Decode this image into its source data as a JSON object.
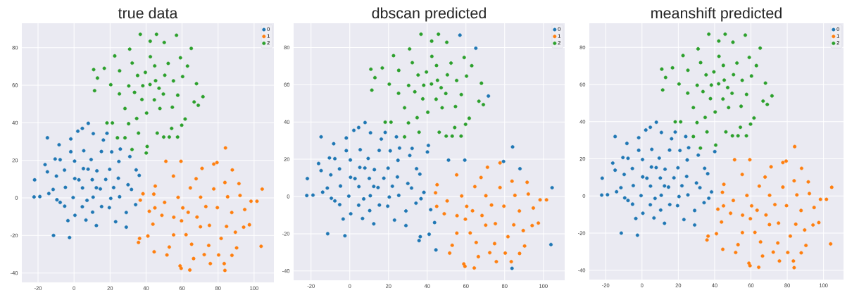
{
  "chart_data": [
    {
      "type": "scatter",
      "title": "true data",
      "xlim": [
        -29,
        111
      ],
      "ylim": [
        -45,
        93
      ],
      "xticks": [
        -20,
        0,
        20,
        40,
        60,
        80,
        100
      ],
      "yticks": [
        -40,
        -20,
        0,
        20,
        40,
        60,
        80
      ],
      "grid": true,
      "legend": "top right",
      "marker": "circle",
      "series": [
        {
          "name": "0",
          "color": "#1f77b4",
          "x": [
            -22.2,
            -19.0,
            -21.9,
            -11.4,
            -2.5,
            -14.8,
            -16.1,
            -14.0,
            -10.5,
            7.9,
            2.1,
            4.6,
            10.7,
            18.3,
            25.7,
            31.0,
            34.5,
            36.2,
            34.2,
            29.0,
            29.0,
            23.1,
            12.4,
            6.6,
            -3.4,
            0.5,
            -7.7,
            -11.6,
            -8.3,
            -1.8,
            31.9,
            30.0,
            20.9,
            16.3,
            -14.8,
            0.4,
            5.2,
            10.1,
            14.6,
            19.8,
            9.5,
            4.7,
            15.3,
            -0.5,
            -5.3,
            20.4,
            24.6,
            10.6,
            5.4,
            15.2,
            -4.8,
            0.3,
            24.9,
            19.6,
            4.6,
            -5.2,
            10.3,
            -7.7,
            -9.8,
            17.6,
            7.8,
            12.4,
            2.7,
            25.3,
            -1.8,
            12.7,
            7.2,
            -9.5,
            22.0
          ],
          "values": [
            0.5,
            0.7,
            9.6,
            -20.0,
            -21.1,
            32.0,
            17.7,
            2.3,
            20.7,
            39.7,
            35.5,
            37.0,
            34.2,
            34.4,
            26.0,
            22.0,
            14.9,
            12.0,
            -3.6,
            -7.8,
            -15.6,
            -12.7,
            -14.7,
            -11.8,
            -12.1,
            -9.3,
            -2.4,
            4.5,
            28.3,
            31.4,
            4.5,
            7.0,
            24.5,
            30.8,
            13.9,
            10.3,
            15.6,
            9.7,
            4.8,
            15.2,
            20.4,
            5.3,
            -4.6,
            0.2,
            14.8,
            -0.3,
            10.5,
            0.4,
            25.1,
            24.7,
            5.6,
            19.6,
            19.4,
            -5.2,
            -4.7,
            -4.4,
            -7.6,
            20.3,
            11.6,
            9.8,
            15.3,
            5.4,
            9.6,
            0.6,
            24.6,
            14.4,
            -1.3,
            -1.0,
            5.5
          ]
        },
        {
          "name": "1",
          "color": "#ff7f0e",
          "x": [
            84.1,
            51.0,
            59.4,
            77.6,
            71.1,
            87.9,
            104.5,
            98.3,
            101.6,
            97.4,
            94.8,
            103.9,
            90.3,
            87.7,
            83.8,
            83.4,
            75.7,
            64.3,
            59.5,
            58.9,
            51.6,
            52.9,
            44.5,
            41.0,
            36.4,
            35.8,
            43.8,
            41.8,
            44.9,
            44.3,
            36.8,
            38.3,
            45.1,
            55.2,
            48.8,
            91.6,
            83.8,
            92.2,
            94.2,
            79.4,
            68.3,
            60.4,
            75.2,
            70.3,
            62.2,
            79.6,
            65.3,
            74.8,
            55.4,
            84.7,
            70.2,
            59.7,
            77.6,
            64.6,
            57.8,
            87.6,
            72.3,
            81.7,
            55.3,
            89.6,
            67.8,
            50.3,
            73.2,
            63.4,
            80.3,
            66.4,
            85.3
          ],
          "values": [
            26.6,
            19.5,
            19.5,
            18.0,
            15.7,
            14.9,
            4.7,
            -1.8,
            -1.8,
            -14.3,
            -6.2,
            -25.8,
            -26.6,
            -30.6,
            -38.6,
            -35.0,
            -35.0,
            -38.4,
            -37.5,
            -36.2,
            -30.4,
            -26.2,
            -28.7,
            -20.3,
            -21.6,
            -23.7,
            -14.0,
            -7.1,
            -5.3,
            2.0,
            -1.2,
            2.2,
            6.3,
            11.6,
            -9.3,
            7.6,
            8.2,
            1.3,
            -15.6,
            18.8,
            -10.2,
            -5.3,
            -14.6,
            0.4,
            -19.6,
            -5.2,
            -24.7,
            -25.3,
            -10.3,
            -15.2,
            -15.4,
            -12.2,
            4.8,
            5.3,
            0.3,
            -7.8,
            -30.2,
            -21.6,
            -19.7,
            -18.3,
            10.2,
            -2.4,
            -4.6,
            -7.7,
            -30.4,
            -32.3,
            0.6
          ]
        },
        {
          "name": "2",
          "color": "#2ca02c",
          "x": [
            36.8,
            45.8,
            56.9,
            65.1,
            71.6,
            68.0,
            69.0,
            66.7,
            59.8,
            57.5,
            52.9,
            49.8,
            46.2,
            40.6,
            40.1,
            32.2,
            28.3,
            24.1,
            18.3,
            21.3,
            11.4,
            13.0,
            10.9,
            16.8,
            22.6,
            30.9,
            42.3,
            50.1,
            59.1,
            63.0,
            30.3,
            35.8,
            54.2,
            61.7,
            42.2,
            35.3,
            49.6,
            44.8,
            37.7,
            30.4,
            55.2,
            40.3,
            47.7,
            25.2,
            32.3,
            57.6,
            45.3,
            38.2,
            50.4,
            42.4,
            28.3,
            54.6,
            34.8,
            60.3,
            20.4,
            25.3,
            44.6,
            52.3,
            39.6,
            47.2,
            33.6
          ],
          "values": [
            87.1,
            87.1,
            86.6,
            79.6,
            53.9,
            60.8,
            49.3,
            51.1,
            38.7,
            32.4,
            32.4,
            32.4,
            34.5,
            27.4,
            23.9,
            25.8,
            32.0,
            32.0,
            39.9,
            39.9,
            57.1,
            63.8,
            68.3,
            69.0,
            75.6,
            79.2,
            83.4,
            82.8,
            74.6,
            70.2,
            39.5,
            34.5,
            37.0,
            42.0,
            60.4,
            65.2,
            55.3,
            70.3,
            52.4,
            59.6,
            62.3,
            45.2,
            47.6,
            55.4,
            71.8,
            54.7,
            62.4,
            59.7,
            65.3,
            75.2,
            47.6,
            48.3,
            42.3,
            64.6,
            60.3,
            67.7,
            52.2,
            71.6,
            66.8,
            58.4,
            56.2
          ]
        }
      ]
    },
    {
      "type": "scatter",
      "title": "dbscan predicted",
      "xlim": [
        -29,
        111
      ],
      "ylim": [
        -45,
        93
      ],
      "xticks": [
        -20,
        0,
        20,
        40,
        60,
        80,
        100
      ],
      "yticks": [
        -40,
        -20,
        0,
        20,
        40,
        60,
        80
      ],
      "grid": true,
      "legend": "top right",
      "marker": "circle",
      "series": [
        {
          "name": "0",
          "color": "#1f77b4",
          "x": [
            -22.2,
            -19.0,
            -21.9,
            -11.4,
            -2.5,
            -14.8,
            -16.1,
            -14.0,
            -10.5,
            7.9,
            2.1,
            4.6,
            10.7,
            18.3,
            25.7,
            31.0,
            34.5,
            36.2,
            34.2,
            29.0,
            29.0,
            23.1,
            12.4,
            6.6,
            -3.4,
            0.5,
            -7.7,
            -11.6,
            -8.3,
            -1.8,
            31.9,
            30.0,
            20.9,
            16.3,
            -14.8,
            0.4,
            5.2,
            10.1,
            14.6,
            19.8,
            9.5,
            4.7,
            15.3,
            -0.5,
            -5.3,
            20.4,
            24.6,
            10.6,
            5.4,
            15.2,
            -4.8,
            0.3,
            24.9,
            19.6,
            4.6,
            -5.2,
            10.3,
            -7.7,
            -9.8,
            17.6,
            7.8,
            12.4,
            2.7,
            25.3,
            -1.8,
            12.7,
            7.2,
            -9.5,
            22.0,
            56.9,
            65.1,
            71.6,
            40.6,
            40.1,
            32.2,
            24.1,
            84.1,
            51.0,
            59.4,
            87.9,
            104.5,
            103.9,
            83.8,
            44.5,
            41.0,
            36.4,
            35.8,
            43.8,
            41.8,
            36.8,
            38.3,
            79.4
          ],
          "values": [
            0.5,
            0.7,
            9.6,
            -20.0,
            -21.1,
            32.0,
            17.7,
            2.3,
            20.7,
            39.7,
            35.5,
            37.0,
            34.2,
            34.4,
            26.0,
            22.0,
            14.9,
            12.0,
            -3.6,
            -7.8,
            -15.6,
            -12.7,
            -14.7,
            -11.8,
            -12.1,
            -9.3,
            -2.4,
            4.5,
            28.3,
            31.4,
            4.5,
            7.0,
            24.5,
            30.8,
            13.9,
            10.3,
            15.6,
            9.7,
            4.8,
            15.2,
            20.4,
            5.3,
            -4.6,
            0.2,
            14.8,
            -0.3,
            10.5,
            0.4,
            25.1,
            24.7,
            5.6,
            19.6,
            19.4,
            -5.2,
            -4.7,
            -4.4,
            -7.6,
            20.3,
            11.6,
            9.8,
            15.3,
            5.4,
            9.6,
            0.6,
            24.6,
            14.4,
            -1.3,
            -1.0,
            5.5,
            86.6,
            79.6,
            53.9,
            27.4,
            23.9,
            25.8,
            32.0,
            26.6,
            19.5,
            19.5,
            14.9,
            4.7,
            -25.8,
            -38.6,
            -28.7,
            -20.3,
            -21.6,
            -23.7,
            -14.0,
            -7.1,
            -1.2,
            2.2,
            18.8
          ]
        },
        {
          "name": "1",
          "color": "#ff7f0e",
          "x": [
            77.6,
            71.1,
            98.3,
            101.6,
            97.4,
            94.8,
            90.3,
            87.7,
            83.4,
            75.7,
            64.3,
            59.5,
            58.9,
            51.6,
            52.9,
            44.9,
            44.3,
            45.1,
            55.2,
            48.8,
            91.6,
            83.8,
            92.2,
            94.2,
            68.3,
            60.4,
            75.2,
            70.3,
            62.2,
            79.6,
            65.3,
            74.8,
            55.4,
            84.7,
            70.2,
            59.7,
            77.6,
            64.6,
            57.8,
            87.6,
            72.3,
            81.7,
            55.3,
            89.6,
            67.8,
            50.3,
            73.2,
            63.4,
            80.3,
            66.4,
            85.3
          ],
          "values": [
            18.0,
            15.7,
            -1.8,
            -1.8,
            -14.3,
            -6.2,
            -26.6,
            -30.6,
            -35.0,
            -35.0,
            -38.4,
            -37.5,
            -36.2,
            -30.4,
            -26.2,
            -5.3,
            2.0,
            6.3,
            11.6,
            -9.3,
            7.6,
            8.2,
            1.3,
            -15.6,
            -10.2,
            -5.3,
            -14.6,
            0.4,
            -19.6,
            -5.2,
            -24.7,
            -25.3,
            -10.3,
            -15.2,
            -15.4,
            -12.2,
            4.8,
            5.3,
            0.3,
            -7.8,
            -30.2,
            -21.6,
            -19.7,
            -18.3,
            10.2,
            -2.4,
            -4.6,
            -7.7,
            -30.4,
            -32.3,
            0.6
          ]
        },
        {
          "name": "2",
          "color": "#2ca02c",
          "x": [
            36.8,
            45.8,
            68.0,
            69.0,
            66.7,
            59.8,
            57.5,
            52.9,
            49.8,
            46.2,
            28.3,
            18.3,
            21.3,
            11.4,
            13.0,
            10.9,
            16.8,
            22.6,
            30.9,
            42.3,
            50.1,
            59.1,
            63.0,
            30.3,
            35.8,
            54.2,
            61.7,
            42.2,
            35.3,
            49.6,
            44.8,
            37.7,
            30.4,
            55.2,
            40.3,
            47.7,
            25.2,
            32.3,
            57.6,
            45.3,
            38.2,
            50.4,
            42.4,
            28.3,
            54.6,
            34.8,
            60.3,
            20.4,
            25.3,
            44.6,
            52.3,
            39.6,
            47.2,
            33.6
          ],
          "values": [
            87.1,
            87.1,
            60.8,
            49.3,
            51.1,
            38.7,
            32.4,
            32.4,
            32.4,
            34.5,
            32.0,
            39.9,
            39.9,
            57.1,
            63.8,
            68.3,
            69.0,
            75.6,
            79.2,
            83.4,
            82.8,
            74.6,
            70.2,
            39.5,
            34.5,
            37.0,
            42.0,
            60.4,
            65.2,
            55.3,
            70.3,
            52.4,
            59.6,
            62.3,
            45.2,
            47.6,
            55.4,
            71.8,
            54.7,
            62.4,
            59.7,
            65.3,
            75.2,
            47.6,
            48.3,
            42.3,
            64.6,
            60.3,
            67.7,
            52.2,
            71.6,
            66.8,
            58.4,
            56.2
          ]
        }
      ]
    },
    {
      "type": "scatter",
      "title": "meanshift predicted",
      "xlim": [
        -29,
        111
      ],
      "ylim": [
        -45,
        93
      ],
      "xticks": [
        -20,
        0,
        20,
        40,
        60,
        80,
        100
      ],
      "yticks": [
        -40,
        -20,
        0,
        20,
        40,
        60,
        80
      ],
      "grid": true,
      "legend": "top right",
      "marker": "circle",
      "series": [
        {
          "name": "0",
          "color": "#1f77b4",
          "x": [
            -22.2,
            -19.0,
            -21.9,
            -11.4,
            -2.5,
            -14.8,
            -16.1,
            -14.0,
            -10.5,
            7.9,
            2.1,
            4.6,
            10.7,
            18.3,
            25.7,
            31.0,
            34.5,
            36.2,
            34.2,
            29.0,
            29.0,
            23.1,
            12.4,
            6.6,
            -3.4,
            0.5,
            -7.7,
            -11.6,
            -8.3,
            -1.8,
            31.9,
            30.0,
            20.9,
            16.3,
            -14.8,
            0.4,
            5.2,
            10.1,
            14.6,
            19.8,
            9.5,
            4.7,
            15.3,
            -0.5,
            -5.3,
            20.4,
            24.6,
            10.6,
            5.4,
            15.2,
            -4.8,
            0.3,
            24.9,
            19.6,
            4.6,
            -5.2,
            10.3,
            -7.7,
            -9.8,
            17.6,
            7.8,
            12.4,
            2.7,
            25.3,
            -1.8,
            12.7,
            7.2,
            -9.5,
            22.0,
            40.1,
            24.1,
            36.8,
            38.3
          ],
          "values": [
            0.5,
            0.7,
            9.6,
            -20.0,
            -21.1,
            32.0,
            17.7,
            2.3,
            20.7,
            39.7,
            35.5,
            37.0,
            34.2,
            34.4,
            26.0,
            22.0,
            14.9,
            12.0,
            -3.6,
            -7.8,
            -15.6,
            -12.7,
            -14.7,
            -11.8,
            -12.1,
            -9.3,
            -2.4,
            4.5,
            28.3,
            31.4,
            4.5,
            7.0,
            24.5,
            30.8,
            13.9,
            10.3,
            15.6,
            9.7,
            4.8,
            15.2,
            20.4,
            5.3,
            -4.6,
            0.2,
            14.8,
            -0.3,
            10.5,
            0.4,
            25.1,
            24.7,
            5.6,
            19.6,
            19.4,
            -5.2,
            -4.7,
            -4.4,
            -7.6,
            20.3,
            11.6,
            9.8,
            15.3,
            5.4,
            9.6,
            0.6,
            24.6,
            14.4,
            -1.3,
            -1.0,
            5.5,
            23.9,
            32.0,
            -1.2,
            2.2
          ]
        },
        {
          "name": "1",
          "color": "#ff7f0e",
          "x": [
            84.1,
            51.0,
            59.4,
            77.6,
            71.1,
            87.9,
            104.5,
            98.3,
            101.6,
            97.4,
            94.8,
            103.9,
            90.3,
            87.7,
            83.8,
            83.4,
            75.7,
            64.3,
            59.5,
            58.9,
            51.6,
            52.9,
            44.5,
            41.0,
            36.4,
            35.8,
            43.8,
            41.8,
            44.9,
            44.3,
            45.1,
            55.2,
            48.8,
            91.6,
            83.8,
            92.2,
            94.2,
            79.4,
            68.3,
            60.4,
            75.2,
            70.3,
            62.2,
            79.6,
            65.3,
            74.8,
            55.4,
            84.7,
            70.2,
            59.7,
            77.6,
            64.6,
            57.8,
            87.6,
            72.3,
            81.7,
            55.3,
            89.6,
            67.8,
            50.3,
            73.2,
            63.4,
            80.3,
            66.4,
            85.3
          ],
          "values": [
            26.6,
            19.5,
            19.5,
            18.0,
            15.7,
            14.9,
            4.7,
            -1.8,
            -1.8,
            -14.3,
            -6.2,
            -25.8,
            -26.6,
            -30.6,
            -38.6,
            -35.0,
            -35.0,
            -38.4,
            -37.5,
            -36.2,
            -30.4,
            -26.2,
            -28.7,
            -20.3,
            -21.6,
            -23.7,
            -14.0,
            -7.1,
            -5.3,
            2.0,
            6.3,
            11.6,
            -9.3,
            7.6,
            8.2,
            1.3,
            -15.6,
            18.8,
            -10.2,
            -5.3,
            -14.6,
            0.4,
            -19.6,
            -5.2,
            -24.7,
            -25.3,
            -10.3,
            -15.2,
            -15.4,
            -12.2,
            4.8,
            5.3,
            0.3,
            -7.8,
            -30.2,
            -21.6,
            -19.7,
            -18.3,
            10.2,
            -2.4,
            -4.6,
            -7.7,
            -30.4,
            -32.3,
            0.6
          ]
        },
        {
          "name": "2",
          "color": "#2ca02c",
          "x": [
            36.8,
            45.8,
            56.9,
            65.1,
            71.6,
            68.0,
            69.0,
            66.7,
            59.8,
            57.5,
            52.9,
            49.8,
            46.2,
            40.6,
            32.2,
            28.3,
            18.3,
            21.3,
            11.4,
            13.0,
            10.9,
            16.8,
            22.6,
            30.9,
            42.3,
            50.1,
            59.1,
            63.0,
            30.3,
            35.8,
            54.2,
            61.7,
            42.2,
            35.3,
            49.6,
            44.8,
            37.7,
            30.4,
            55.2,
            40.3,
            47.7,
            25.2,
            32.3,
            57.6,
            45.3,
            38.2,
            50.4,
            42.4,
            28.3,
            54.6,
            34.8,
            60.3,
            20.4,
            25.3,
            44.6,
            52.3,
            39.6,
            47.2,
            33.6
          ],
          "values": [
            87.1,
            87.1,
            86.6,
            79.6,
            53.9,
            60.8,
            49.3,
            51.1,
            38.7,
            32.4,
            32.4,
            32.4,
            34.5,
            27.4,
            25.8,
            32.0,
            39.9,
            39.9,
            57.1,
            63.8,
            68.3,
            69.0,
            75.6,
            79.2,
            83.4,
            82.8,
            74.6,
            70.2,
            39.5,
            34.5,
            37.0,
            42.0,
            60.4,
            65.2,
            55.3,
            70.3,
            52.4,
            59.6,
            62.3,
            45.2,
            47.6,
            55.4,
            71.8,
            54.7,
            62.4,
            59.7,
            65.3,
            75.2,
            47.6,
            48.3,
            42.3,
            64.6,
            60.3,
            67.7,
            52.2,
            71.6,
            66.8,
            58.4,
            56.2
          ]
        }
      ]
    }
  ]
}
